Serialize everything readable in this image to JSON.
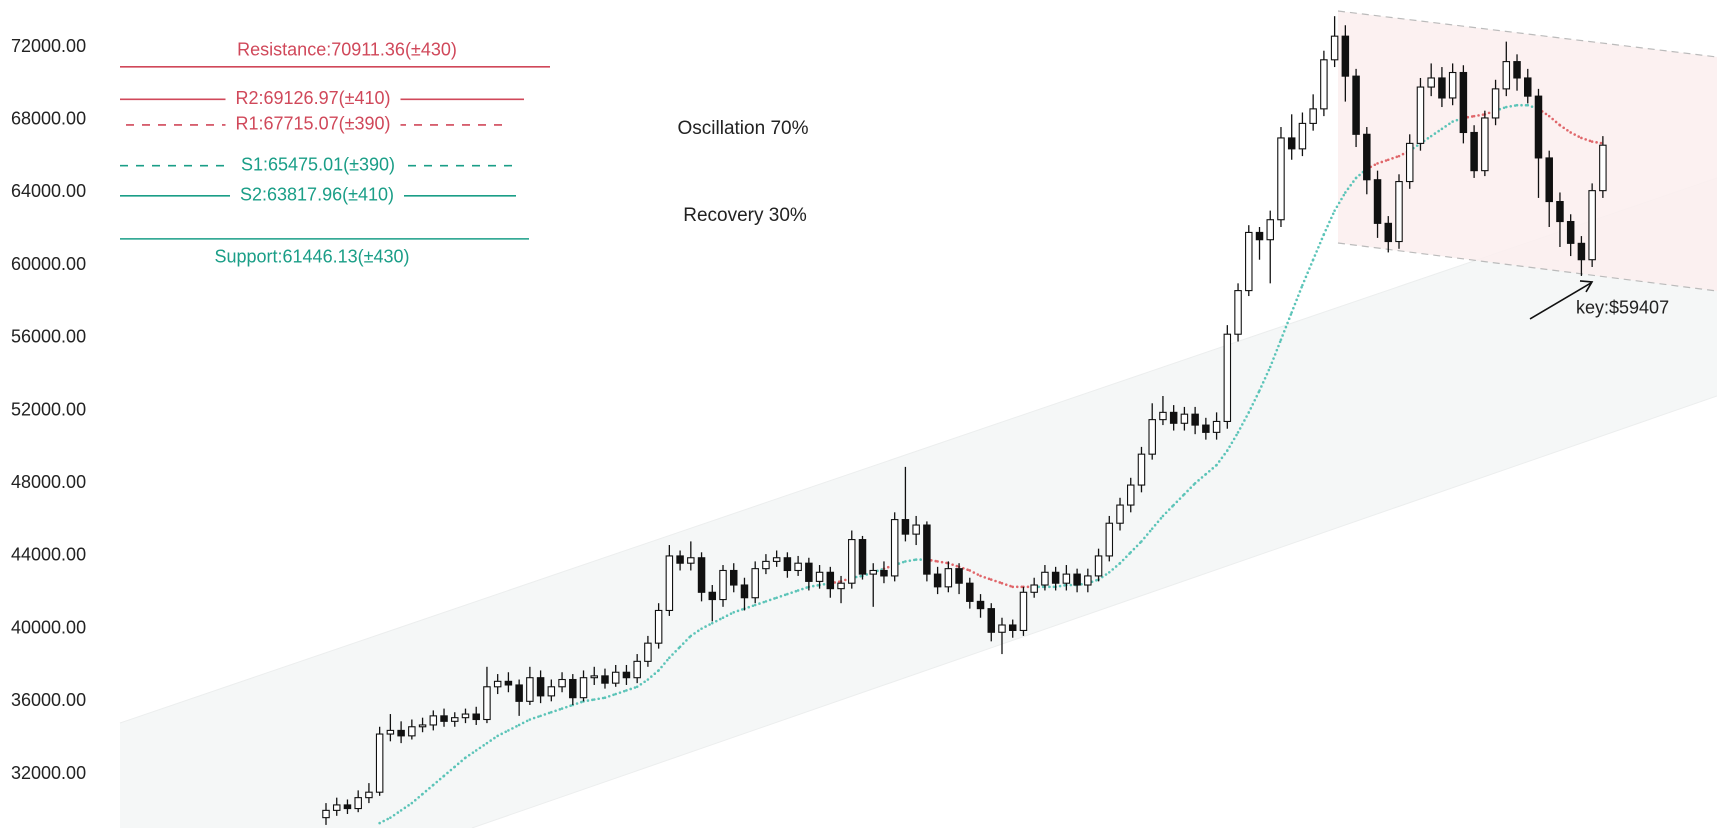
{
  "chart_data": {
    "type": "candlestick",
    "ylim": [
      29030,
      74590
    ],
    "yticks": [
      {
        "value": 32000,
        "label": "32000.00"
      },
      {
        "value": 36000,
        "label": "36000.00"
      },
      {
        "value": 40000,
        "label": "40000.00"
      },
      {
        "value": 44000,
        "label": "44000.00"
      },
      {
        "value": 48000,
        "label": "48000.00"
      },
      {
        "value": 52000,
        "label": "52000.00"
      },
      {
        "value": 56000,
        "label": "56000.00"
      },
      {
        "value": 60000,
        "label": "60000.00"
      },
      {
        "value": 64000,
        "label": "64000.00"
      },
      {
        "value": 68000,
        "label": "68000.00"
      },
      {
        "value": 72000,
        "label": "72000.00"
      }
    ],
    "up_color": "#ffffff",
    "down_color": "#111111",
    "outline_color": "#111111",
    "open": [
      29600,
      30000,
      30300,
      30100,
      30700,
      31000,
      34200,
      34400,
      34100,
      34600,
      34700,
      35200,
      34900,
      35100,
      35300,
      35000,
      36800,
      37100,
      36900,
      36000,
      37300,
      36300,
      36800,
      37200,
      36200,
      37300,
      37400,
      37000,
      37600,
      37300,
      38200,
      39200,
      41000,
      44000,
      43600,
      43900,
      42000,
      41600,
      43200,
      42400,
      41700,
      43300,
      43700,
      43900,
      43200,
      43600,
      42600,
      43100,
      42200,
      42500,
      44900,
      43000,
      43200,
      42900,
      46000,
      45200,
      45700,
      43000,
      42300,
      43300,
      42500,
      41500,
      41100,
      39800,
      40200,
      39900,
      42000,
      42400,
      43100,
      42500,
      43000,
      42400,
      42900,
      44000,
      45800,
      46800,
      47900,
      49600,
      51500,
      51900,
      51300,
      51800,
      51200,
      50800,
      51400,
      56200,
      58600,
      61800,
      61400,
      62500,
      67000,
      66400,
      67800,
      68600,
      71300,
      72600,
      70400,
      67200,
      64700,
      62300,
      61300,
      64600,
      66700,
      69800,
      70300,
      69200,
      70600,
      67300,
      65200,
      68100,
      69700,
      71200,
      70300,
      69300,
      65900,
      63500,
      62400,
      61200,
      60300,
      64100
    ],
    "high": [
      30400,
      30700,
      30600,
      31100,
      31500,
      34600,
      35300,
      34900,
      35000,
      35100,
      35500,
      35600,
      35400,
      35600,
      35700,
      37900,
      37500,
      37600,
      37200,
      37900,
      37700,
      37200,
      37600,
      37500,
      37700,
      37900,
      37800,
      38000,
      38000,
      38600,
      39600,
      41400,
      44600,
      44300,
      44800,
      44200,
      42400,
      43500,
      43600,
      42800,
      43700,
      44100,
      44300,
      44200,
      44000,
      43900,
      43500,
      43400,
      42900,
      45400,
      45100,
      43600,
      43700,
      46400,
      48900,
      46200,
      45900,
      43400,
      43700,
      43600,
      42800,
      41900,
      41400,
      40600,
      40500,
      42300,
      42800,
      43500,
      43400,
      43500,
      43300,
      43300,
      44400,
      46200,
      47200,
      48300,
      50000,
      52400,
      52800,
      52300,
      52200,
      52200,
      51600,
      51900,
      56700,
      59000,
      62200,
      62100,
      63000,
      67600,
      68300,
      68400,
      69400,
      71800,
      73700,
      73200,
      70800,
      67600,
      65200,
      62700,
      65000,
      67200,
      70300,
      71100,
      70900,
      71100,
      71000,
      67700,
      68500,
      70200,
      72300,
      71600,
      70800,
      69700,
      66300,
      64000,
      62800,
      61600,
      64500,
      67100
    ],
    "low": [
      29200,
      29700,
      29800,
      29900,
      30400,
      30800,
      33800,
      33700,
      33900,
      34300,
      34400,
      34600,
      34600,
      34800,
      34700,
      34800,
      36400,
      36500,
      35200,
      35800,
      35900,
      36000,
      36500,
      35800,
      36000,
      36900,
      36700,
      36800,
      36900,
      37000,
      37900,
      38900,
      40700,
      43200,
      43200,
      41500,
      40400,
      41200,
      42000,
      41000,
      41400,
      43000,
      43400,
      42800,
      42900,
      42100,
      42200,
      41700,
      41400,
      42200,
      42700,
      41200,
      42500,
      42600,
      44800,
      44600,
      42600,
      41900,
      42000,
      41900,
      41100,
      40600,
      39300,
      38600,
      39500,
      39600,
      41700,
      42100,
      42100,
      42100,
      42000,
      42000,
      42600,
      43700,
      45400,
      46400,
      47500,
      49300,
      51200,
      50900,
      50900,
      50700,
      50400,
      50400,
      51000,
      55800,
      58300,
      60300,
      59000,
      62100,
      65800,
      66000,
      67400,
      68200,
      70900,
      69000,
      66500,
      63900,
      61500,
      60700,
      60900,
      64200,
      66300,
      69300,
      68700,
      68800,
      66700,
      64800,
      64900,
      67700,
      69300,
      69600,
      68900,
      63700,
      62100,
      61000,
      60500,
      59407,
      59900,
      63700
    ],
    "close": [
      30000,
      30300,
      30100,
      30700,
      31000,
      34200,
      34400,
      34100,
      34600,
      34700,
      35200,
      34900,
      35100,
      35300,
      35000,
      36800,
      37100,
      36900,
      36000,
      37300,
      36300,
      36800,
      37200,
      36200,
      37300,
      37400,
      37000,
      37600,
      37300,
      38200,
      39200,
      41000,
      44000,
      43600,
      43900,
      42000,
      41600,
      43200,
      42400,
      41700,
      43300,
      43700,
      43900,
      43200,
      43600,
      42600,
      43100,
      42200,
      42500,
      44900,
      43000,
      43200,
      42900,
      46000,
      45200,
      45700,
      43000,
      42300,
      43300,
      42500,
      41500,
      41100,
      39800,
      40200,
      39900,
      42000,
      42400,
      43100,
      42500,
      43000,
      42400,
      42900,
      44000,
      45800,
      46800,
      47900,
      49600,
      51500,
      51900,
      51300,
      51800,
      51200,
      50800,
      51400,
      56200,
      58600,
      61800,
      61400,
      62500,
      67000,
      66400,
      67800,
      68600,
      71300,
      72600,
      70400,
      67200,
      64700,
      62300,
      61300,
      64600,
      66700,
      69800,
      70300,
      69200,
      70600,
      67300,
      65200,
      68100,
      69700,
      71200,
      70300,
      69300,
      65900,
      63500,
      62400,
      61200,
      60300,
      64100,
      66600
    ],
    "moving_average": {
      "color_below_price": "#5cc4b8",
      "color_above_price": "#e0666a",
      "values": [
        null,
        null,
        null,
        null,
        null,
        29300,
        29600,
        30000,
        30400,
        30900,
        31400,
        31900,
        32400,
        32900,
        33300,
        33700,
        34100,
        34400,
        34700,
        35000,
        35200,
        35400,
        35600,
        35800,
        36000,
        36100,
        36200,
        36400,
        36600,
        36800,
        37200,
        37700,
        38400,
        39000,
        39600,
        40000,
        40300,
        40600,
        40900,
        41100,
        41300,
        41500,
        41700,
        41900,
        42100,
        42300,
        42400,
        42500,
        42600,
        42800,
        42900,
        43100,
        43300,
        43500,
        43700,
        43800,
        43800,
        43700,
        43600,
        43400,
        43200,
        42900,
        42700,
        42500,
        42300,
        42300,
        42300,
        42300,
        42300,
        42400,
        42400,
        42500,
        42700,
        43100,
        43600,
        44200,
        44800,
        45500,
        46200,
        46800,
        47400,
        48000,
        48500,
        49000,
        49800,
        50800,
        51900,
        53100,
        54400,
        55900,
        57400,
        58900,
        60300,
        61700,
        63000,
        64000,
        64800,
        65300,
        65600,
        65800,
        66000,
        66300,
        66700,
        67100,
        67500,
        67900,
        68100,
        68200,
        68300,
        68500,
        68700,
        68800,
        68800,
        68600,
        68200,
        67700,
        67300,
        67000,
        66800,
        66700
      ]
    },
    "levels": {
      "values": [
        70911.36,
        69126.97,
        67715.07,
        65475.01,
        63817.96,
        61446.13
      ],
      "value_labels": [
        "Resistance:70911.36(±430)",
        "R2:69126.97(±410)",
        "R1:67715.07(±390)",
        "S1:65475.01(±390)",
        "S2:63817.96(±410)",
        "Support:61446.13(±430)"
      ],
      "colors": [
        "#d0485a",
        "#d0485a",
        "#d0485a",
        "#1a9e87",
        "#1a9e87",
        "#1a9e87"
      ],
      "styles": [
        "solid",
        "solid",
        "dashed",
        "dashed",
        "solid",
        "solid"
      ]
    },
    "annotations": [
      "Oscillation 70%",
      "Recovery 30%"
    ],
    "key_level": {
      "value": 59407,
      "label": "key:$59407"
    }
  }
}
